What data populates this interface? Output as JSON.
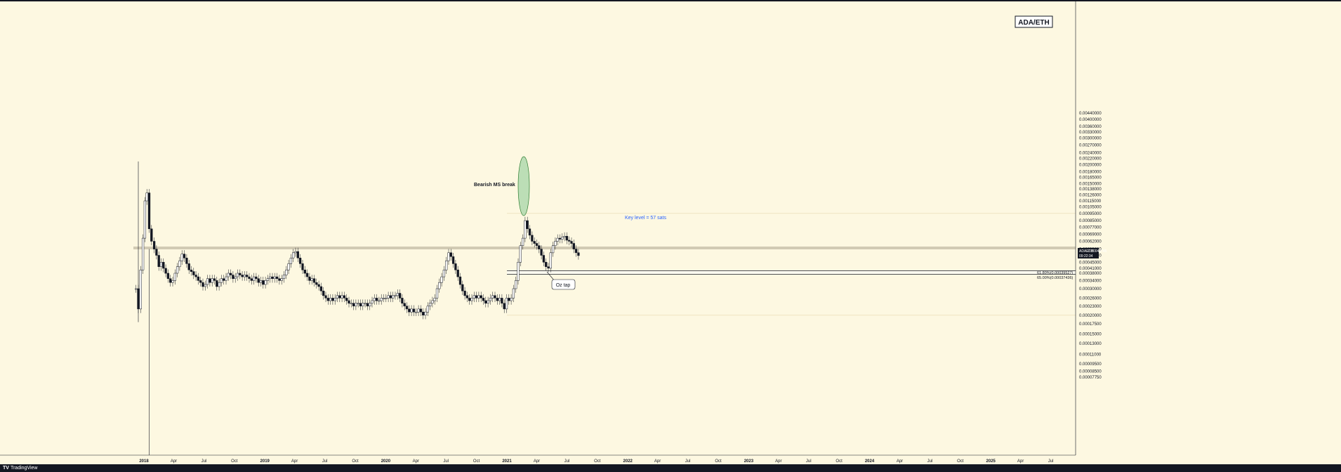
{
  "chart_data": {
    "type": "candlestick",
    "symbol_box": "ADA/ETH",
    "price_axis_ticks": [
      "0.00440000",
      "0.00400000",
      "0.00360000",
      "0.00330000",
      "0.00300000",
      "0.00270000",
      "0.00240000",
      "0.00220000",
      "0.00200000",
      "0.00180000",
      "0.00165000",
      "0.00150000",
      "0.00138000",
      "0.00126000",
      "0.00115000",
      "0.00105000",
      "0.00095000",
      "0.00085000",
      "0.00077000",
      "0.00069000",
      "0.00062000",
      "0.00055000",
      "0.00050000",
      "0.00045000",
      "0.00041000",
      "0.00038000",
      "0.00034000",
      "0.00030000",
      "0.00026000",
      "0.00023000",
      "0.00020000",
      "0.00017500",
      "0.00015000",
      "0.00013000",
      "0.00011000",
      "0.00009500",
      "0.00008500",
      "0.00007750"
    ],
    "time_axis_ticks": [
      "2018",
      "Apr",
      "Jul",
      "Oct",
      "2019",
      "Apr",
      "Jul",
      "Oct",
      "2020",
      "Apr",
      "Jul",
      "Oct",
      "2021",
      "Apr",
      "Jul",
      "Oct",
      "2022",
      "Apr",
      "Jul",
      "Oct",
      "2023",
      "Apr",
      "Jul",
      "Oct",
      "2024",
      "Apr",
      "Jul",
      "Oct",
      "2025",
      "Apr",
      "Jul"
    ],
    "y_range": [
      7.75e-05,
      0.0044
    ],
    "y_scale": "log",
    "series": [
      {
        "date": "2017-12-08",
        "price": 0.0003
      },
      {
        "date": "2017-12-15",
        "price": 0.00022
      },
      {
        "date": "2017-12-22",
        "price": 0.0004
      },
      {
        "date": "2017-12-29",
        "price": 0.00065
      },
      {
        "date": "2018-01-04",
        "price": 0.00115
      },
      {
        "date": "2018-01-10",
        "price": 0.0013
      },
      {
        "date": "2018-01-17",
        "price": 0.00075
      },
      {
        "date": "2018-01-24",
        "price": 0.00062
      },
      {
        "date": "2018-02-01",
        "price": 0.00055
      },
      {
        "date": "2018-02-08",
        "price": 0.0005
      },
      {
        "date": "2018-02-15",
        "price": 0.00042
      },
      {
        "date": "2018-02-22",
        "price": 0.00045
      },
      {
        "date": "2018-03-01",
        "price": 0.00041
      },
      {
        "date": "2018-03-08",
        "price": 0.00038
      },
      {
        "date": "2018-03-15",
        "price": 0.00035
      },
      {
        "date": "2018-03-22",
        "price": 0.00033
      },
      {
        "date": "2018-03-29",
        "price": 0.00034
      },
      {
        "date": "2018-04-05",
        "price": 0.00038
      },
      {
        "date": "2018-04-12",
        "price": 0.00042
      },
      {
        "date": "2018-04-19",
        "price": 0.00046
      },
      {
        "date": "2018-04-26",
        "price": 0.00051
      },
      {
        "date": "2018-05-03",
        "price": 0.00048
      },
      {
        "date": "2018-05-10",
        "price": 0.00044
      },
      {
        "date": "2018-05-17",
        "price": 0.0004
      },
      {
        "date": "2018-05-24",
        "price": 0.00039
      },
      {
        "date": "2018-05-31",
        "price": 0.00037
      },
      {
        "date": "2018-06-07",
        "price": 0.00036
      },
      {
        "date": "2018-06-14",
        "price": 0.00034
      },
      {
        "date": "2018-06-21",
        "price": 0.00033
      },
      {
        "date": "2018-06-28",
        "price": 0.00031
      },
      {
        "date": "2018-07-05",
        "price": 0.00032
      },
      {
        "date": "2018-07-12",
        "price": 0.00035
      },
      {
        "date": "2018-07-19",
        "price": 0.00033
      },
      {
        "date": "2018-07-26",
        "price": 0.00035
      },
      {
        "date": "2018-08-02",
        "price": 0.00034
      },
      {
        "date": "2018-08-09",
        "price": 0.00031
      },
      {
        "date": "2018-08-16",
        "price": 0.00033
      },
      {
        "date": "2018-08-23",
        "price": 0.00035
      },
      {
        "date": "2018-08-30",
        "price": 0.00034
      },
      {
        "date": "2018-09-06",
        "price": 0.00036
      },
      {
        "date": "2018-09-13",
        "price": 0.00038
      },
      {
        "date": "2018-09-20",
        "price": 0.00037
      },
      {
        "date": "2018-09-27",
        "price": 0.00035
      },
      {
        "date": "2018-10-04",
        "price": 0.00036
      },
      {
        "date": "2018-10-11",
        "price": 0.00038
      },
      {
        "date": "2018-10-18",
        "price": 0.00037
      },
      {
        "date": "2018-10-25",
        "price": 0.00036
      },
      {
        "date": "2018-11-01",
        "price": 0.00037
      },
      {
        "date": "2018-11-08",
        "price": 0.00036
      },
      {
        "date": "2018-11-15",
        "price": 0.00035
      },
      {
        "date": "2018-11-22",
        "price": 0.00034
      },
      {
        "date": "2018-11-29",
        "price": 0.00036
      },
      {
        "date": "2018-12-06",
        "price": 0.00035
      },
      {
        "date": "2018-12-13",
        "price": 0.00033
      },
      {
        "date": "2018-12-20",
        "price": 0.00034
      },
      {
        "date": "2018-12-27",
        "price": 0.00032
      },
      {
        "date": "2019-01-03",
        "price": 0.00034
      },
      {
        "date": "2019-01-10",
        "price": 0.00035
      },
      {
        "date": "2019-01-17",
        "price": 0.00036
      },
      {
        "date": "2019-01-24",
        "price": 0.00035
      },
      {
        "date": "2019-01-31",
        "price": 0.00036
      },
      {
        "date": "2019-02-07",
        "price": 0.00035
      },
      {
        "date": "2019-02-14",
        "price": 0.00034
      },
      {
        "date": "2019-02-21",
        "price": 0.00035
      },
      {
        "date": "2019-02-28",
        "price": 0.00037
      },
      {
        "date": "2019-03-07",
        "price": 0.0004
      },
      {
        "date": "2019-03-14",
        "price": 0.00044
      },
      {
        "date": "2019-03-21",
        "price": 0.00048
      },
      {
        "date": "2019-03-28",
        "price": 0.00052
      },
      {
        "date": "2019-04-04",
        "price": 0.00053
      },
      {
        "date": "2019-04-11",
        "price": 0.00048
      },
      {
        "date": "2019-04-18",
        "price": 0.00044
      },
      {
        "date": "2019-04-25",
        "price": 0.0004
      },
      {
        "date": "2019-05-02",
        "price": 0.00038
      },
      {
        "date": "2019-05-09",
        "price": 0.00036
      },
      {
        "date": "2019-05-16",
        "price": 0.00034
      },
      {
        "date": "2019-05-23",
        "price": 0.00035
      },
      {
        "date": "2019-05-30",
        "price": 0.00033
      },
      {
        "date": "2019-06-06",
        "price": 0.00032
      },
      {
        "date": "2019-06-13",
        "price": 0.00031
      },
      {
        "date": "2019-06-20",
        "price": 0.00029
      },
      {
        "date": "2019-06-27",
        "price": 0.00027
      },
      {
        "date": "2019-07-04",
        "price": 0.00026
      },
      {
        "date": "2019-07-11",
        "price": 0.00025
      },
      {
        "date": "2019-07-18",
        "price": 0.00026
      },
      {
        "date": "2019-07-25",
        "price": 0.00025
      },
      {
        "date": "2019-08-01",
        "price": 0.00026
      },
      {
        "date": "2019-08-08",
        "price": 0.00027
      },
      {
        "date": "2019-08-15",
        "price": 0.00026
      },
      {
        "date": "2019-08-22",
        "price": 0.00027
      },
      {
        "date": "2019-08-29",
        "price": 0.00026
      },
      {
        "date": "2019-09-05",
        "price": 0.00025
      },
      {
        "date": "2019-09-12",
        "price": 0.00024
      },
      {
        "date": "2019-09-19",
        "price": 0.00024
      },
      {
        "date": "2019-09-26",
        "price": 0.00023
      },
      {
        "date": "2019-10-03",
        "price": 0.00024
      },
      {
        "date": "2019-10-10",
        "price": 0.00024
      },
      {
        "date": "2019-10-17",
        "price": 0.00023
      },
      {
        "date": "2019-10-24",
        "price": 0.00024
      },
      {
        "date": "2019-10-31",
        "price": 0.00024
      },
      {
        "date": "2019-11-07",
        "price": 0.00023
      },
      {
        "date": "2019-11-14",
        "price": 0.00024
      },
      {
        "date": "2019-11-21",
        "price": 0.00025
      },
      {
        "date": "2019-11-28",
        "price": 0.00026
      },
      {
        "date": "2019-12-05",
        "price": 0.00025
      },
      {
        "date": "2019-12-12",
        "price": 0.00025
      },
      {
        "date": "2019-12-19",
        "price": 0.00026
      },
      {
        "date": "2019-12-26",
        "price": 0.00026
      },
      {
        "date": "2020-01-02",
        "price": 0.00026
      },
      {
        "date": "2020-01-09",
        "price": 0.00027
      },
      {
        "date": "2020-01-16",
        "price": 0.00026
      },
      {
        "date": "2020-01-23",
        "price": 0.00027
      },
      {
        "date": "2020-01-30",
        "price": 0.00027
      },
      {
        "date": "2020-02-06",
        "price": 0.00028
      },
      {
        "date": "2020-02-13",
        "price": 0.00026
      },
      {
        "date": "2020-02-20",
        "price": 0.00024
      },
      {
        "date": "2020-02-27",
        "price": 0.00023
      },
      {
        "date": "2020-03-05",
        "price": 0.00022
      },
      {
        "date": "2020-03-12",
        "price": 0.00021
      },
      {
        "date": "2020-03-19",
        "price": 0.00022
      },
      {
        "date": "2020-03-26",
        "price": 0.00021
      },
      {
        "date": "2020-04-02",
        "price": 0.00021
      },
      {
        "date": "2020-04-09",
        "price": 0.00022
      },
      {
        "date": "2020-04-16",
        "price": 0.00021
      },
      {
        "date": "2020-04-23",
        "price": 0.0002
      },
      {
        "date": "2020-04-30",
        "price": 0.00021
      },
      {
        "date": "2020-05-07",
        "price": 0.00023
      },
      {
        "date": "2020-05-14",
        "price": 0.00024
      },
      {
        "date": "2020-05-21",
        "price": 0.00025
      },
      {
        "date": "2020-05-28",
        "price": 0.00026
      },
      {
        "date": "2020-06-04",
        "price": 0.0003
      },
      {
        "date": "2020-06-11",
        "price": 0.00033
      },
      {
        "date": "2020-06-18",
        "price": 0.00036
      },
      {
        "date": "2020-06-25",
        "price": 0.0004
      },
      {
        "date": "2020-07-02",
        "price": 0.00046
      },
      {
        "date": "2020-07-09",
        "price": 0.00052
      },
      {
        "date": "2020-07-16",
        "price": 0.00049
      },
      {
        "date": "2020-07-23",
        "price": 0.00044
      },
      {
        "date": "2020-07-30",
        "price": 0.0004
      },
      {
        "date": "2020-08-06",
        "price": 0.00036
      },
      {
        "date": "2020-08-13",
        "price": 0.00032
      },
      {
        "date": "2020-08-20",
        "price": 0.00029
      },
      {
        "date": "2020-08-27",
        "price": 0.00027
      },
      {
        "date": "2020-09-03",
        "price": 0.00026
      },
      {
        "date": "2020-09-10",
        "price": 0.00025
      },
      {
        "date": "2020-09-17",
        "price": 0.00026
      },
      {
        "date": "2020-09-24",
        "price": 0.00027
      },
      {
        "date": "2020-10-01",
        "price": 0.00026
      },
      {
        "date": "2020-10-08",
        "price": 0.00027
      },
      {
        "date": "2020-10-15",
        "price": 0.00026
      },
      {
        "date": "2020-10-22",
        "price": 0.00025
      },
      {
        "date": "2020-10-29",
        "price": 0.00024
      },
      {
        "date": "2020-11-05",
        "price": 0.00025
      },
      {
        "date": "2020-11-12",
        "price": 0.00026
      },
      {
        "date": "2020-11-19",
        "price": 0.00027
      },
      {
        "date": "2020-11-26",
        "price": 0.00026
      },
      {
        "date": "2020-12-03",
        "price": 0.00025
      },
      {
        "date": "2020-12-10",
        "price": 0.00026
      },
      {
        "date": "2020-12-17",
        "price": 0.00024
      },
      {
        "date": "2020-12-24",
        "price": 0.00022
      },
      {
        "date": "2020-12-31",
        "price": 0.00026
      },
      {
        "date": "2021-01-07",
        "price": 0.00025
      },
      {
        "date": "2021-01-14",
        "price": 0.00026
      },
      {
        "date": "2021-01-21",
        "price": 0.0003
      },
      {
        "date": "2021-01-28",
        "price": 0.00034
      },
      {
        "date": "2021-02-04",
        "price": 0.00045
      },
      {
        "date": "2021-02-11",
        "price": 0.00058
      },
      {
        "date": "2021-02-18",
        "price": 0.00065
      },
      {
        "date": "2021-02-25",
        "price": 0.00085
      },
      {
        "date": "2021-03-04",
        "price": 0.00075
      },
      {
        "date": "2021-03-11",
        "price": 0.00068
      },
      {
        "date": "2021-03-18",
        "price": 0.00062
      },
      {
        "date": "2021-03-25",
        "price": 0.0006
      },
      {
        "date": "2021-04-01",
        "price": 0.00058
      },
      {
        "date": "2021-04-08",
        "price": 0.00055
      },
      {
        "date": "2021-04-15",
        "price": 0.0005
      },
      {
        "date": "2021-04-22",
        "price": 0.00045
      },
      {
        "date": "2021-04-29",
        "price": 0.00042
      },
      {
        "date": "2021-05-06",
        "price": 0.00041
      },
      {
        "date": "2021-05-13",
        "price": 0.00052
      },
      {
        "date": "2021-05-20",
        "price": 0.00058
      },
      {
        "date": "2021-05-27",
        "price": 0.00062
      },
      {
        "date": "2021-06-03",
        "price": 0.00065
      },
      {
        "date": "2021-06-10",
        "price": 0.00064
      },
      {
        "date": "2021-06-17",
        "price": 0.00066
      },
      {
        "date": "2021-06-24",
        "price": 0.00067
      },
      {
        "date": "2021-07-01",
        "price": 0.00063
      },
      {
        "date": "2021-07-08",
        "price": 0.00062
      },
      {
        "date": "2021-07-15",
        "price": 0.0006
      },
      {
        "date": "2021-07-22",
        "price": 0.00055
      },
      {
        "date": "2021-07-29",
        "price": 0.00052
      },
      {
        "date": "2021-08-05",
        "price": 0.0004974
      }
    ],
    "annotations": {
      "bearish_label": "Bearish MS break",
      "key_level_label": "Key level = 57 sats",
      "oz_tap_label": "Oz tap",
      "fib_618_label": "61.80%(0.00039527)",
      "fib_65_label": "65.00%(0.00037436)"
    },
    "current_price": {
      "symbol": "ADAETH",
      "value": "0.00049745",
      "countdown": "09:22:34"
    }
  },
  "footer": {
    "brand_mark": "TV",
    "brand_name": "TradingView"
  }
}
